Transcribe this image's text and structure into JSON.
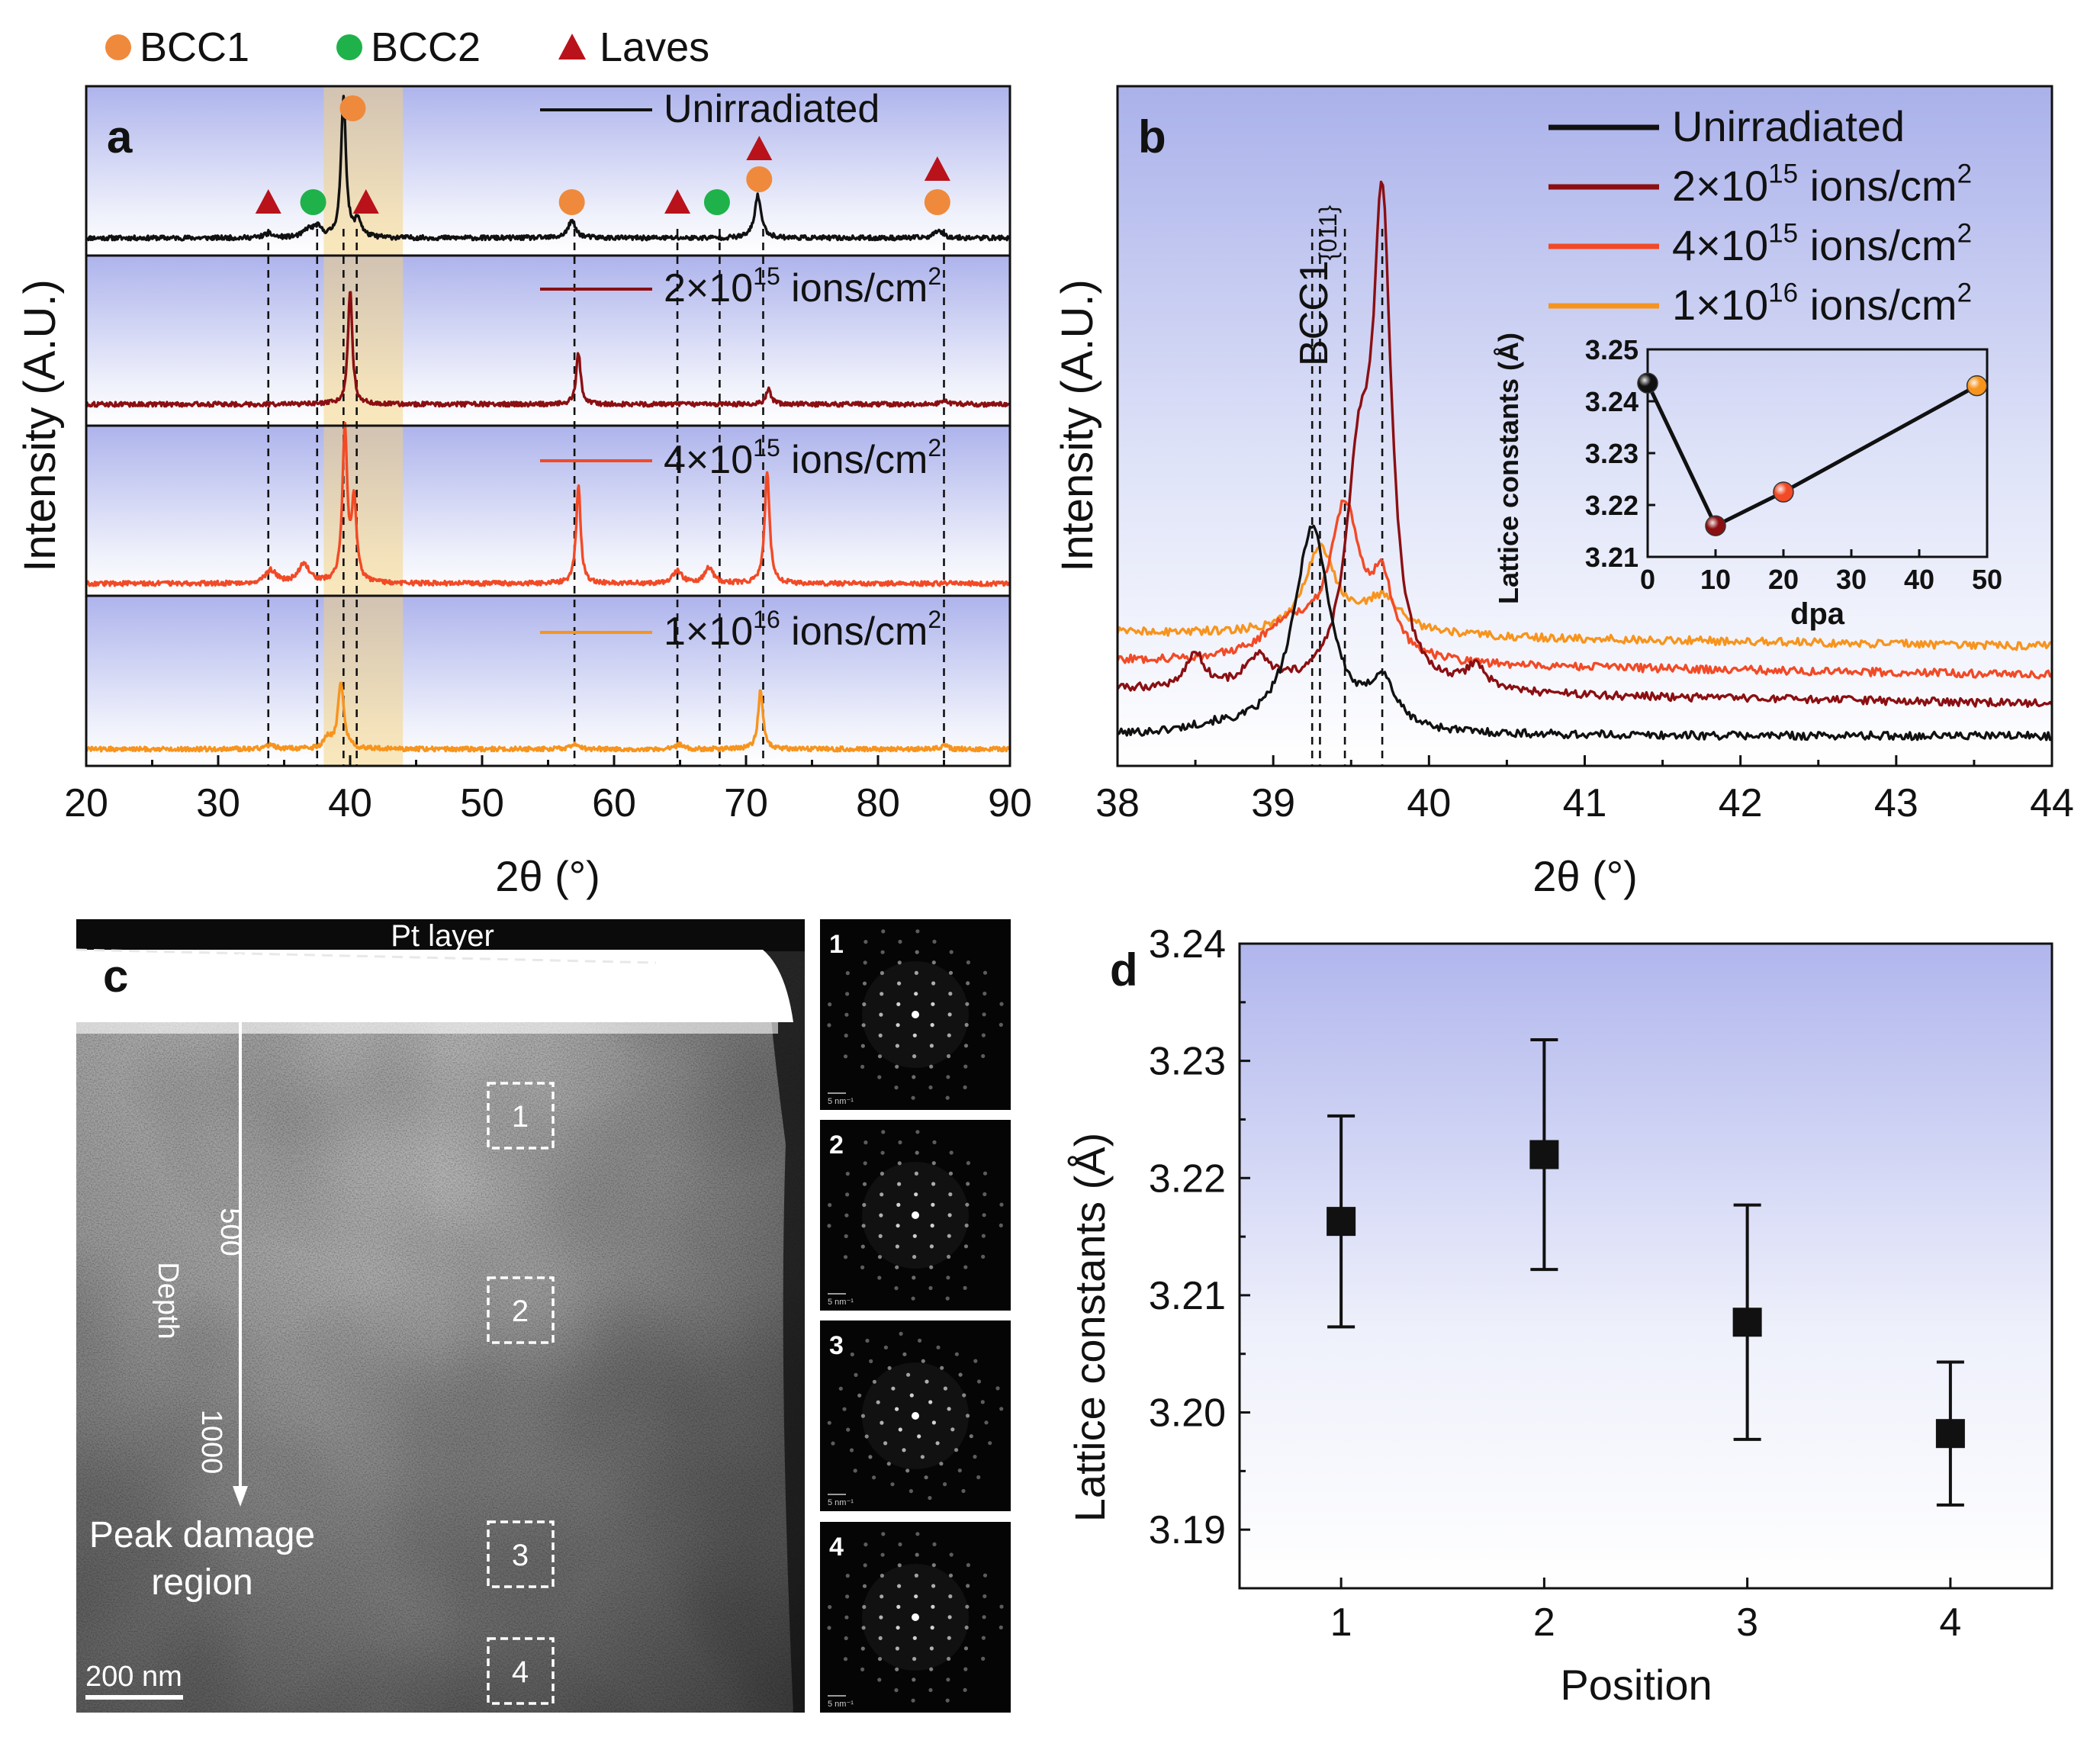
{
  "colors": {
    "unirr": "#111111",
    "f2e15": "#8b0f12",
    "f4e15": "#f24a26",
    "f1e16": "#f7941d",
    "bcc1": "#ef8a3c",
    "bcc2": "#1fb24a",
    "laves": "#b9121b"
  },
  "top_legend": [
    "BCC1",
    "BCC2",
    "Laves"
  ],
  "chart_data": [
    {
      "id": "a",
      "type": "line",
      "panel_label": "a",
      "xlabel": "2θ (°)",
      "ylabel": "Intensity (A.U.)",
      "xlim": [
        20,
        90
      ],
      "xticks": [
        "20",
        "30",
        "40",
        "50",
        "60",
        "70",
        "80",
        "90"
      ],
      "highlight_range": [
        38,
        44
      ],
      "dashed_lines_x": [
        33.8,
        37.5,
        39.5,
        40.5,
        57,
        64.8,
        68,
        71.3,
        85
      ],
      "series": [
        {
          "name": "Unirradiated",
          "label": "Unirradiated",
          "color_key": "unirr",
          "peaks": [
            [
              33.8,
              0.03,
              0.4
            ],
            [
              36.8,
              0.05,
              0.4
            ],
            [
              37.5,
              0.07,
              0.4
            ],
            [
              39.5,
              1.0,
              0.22
            ],
            [
              40.6,
              0.12,
              0.3
            ],
            [
              56.8,
              0.12,
              0.35
            ],
            [
              70.9,
              0.3,
              0.3
            ],
            [
              84.6,
              0.06,
              0.35
            ]
          ]
        },
        {
          "name": "2×10^15 ions/cm^2",
          "label": [
            "2×10",
            "15",
            " ions/cm",
            "2"
          ],
          "color_key": "f2e15",
          "peaks": [
            [
              40.0,
              1.0,
              0.2
            ],
            [
              57.3,
              0.45,
              0.2
            ],
            [
              71.7,
              0.14,
              0.22
            ],
            [
              85.0,
              0.04,
              0.3
            ]
          ]
        },
        {
          "name": "4×10^15 ions/cm^2",
          "label": [
            "4×10",
            "15",
            " ions/cm",
            "2"
          ],
          "color_key": "f4e15",
          "peaks": [
            [
              34.0,
              0.08,
              0.5
            ],
            [
              36.5,
              0.12,
              0.5
            ],
            [
              39.6,
              0.95,
              0.22
            ],
            [
              40.3,
              0.5,
              0.22
            ],
            [
              57.3,
              0.62,
              0.2
            ],
            [
              64.8,
              0.08,
              0.4
            ],
            [
              67.2,
              0.1,
              0.4
            ],
            [
              71.6,
              0.7,
              0.22
            ]
          ]
        },
        {
          "name": "1×10^16 ions/cm^2",
          "label": [
            "1×10",
            "16",
            " ions/cm",
            "2"
          ],
          "color_key": "f1e16",
          "peaks": [
            [
              34.0,
              0.05,
              0.4
            ],
            [
              38.3,
              0.12,
              0.3
            ],
            [
              39.3,
              0.7,
              0.28
            ],
            [
              57.0,
              0.06,
              0.35
            ],
            [
              65.0,
              0.05,
              0.35
            ],
            [
              71.1,
              0.65,
              0.22
            ],
            [
              85.0,
              0.04,
              0.3
            ]
          ]
        }
      ],
      "markers": [
        {
          "type": "laves",
          "x": 33.8
        },
        {
          "type": "bcc2",
          "x": 37.2
        },
        {
          "type": "bcc1",
          "x": 40.2
        },
        {
          "type": "laves",
          "x": 41.2
        },
        {
          "type": "bcc1",
          "x": 56.8
        },
        {
          "type": "laves",
          "x": 64.8
        },
        {
          "type": "bcc2",
          "x": 67.8
        },
        {
          "type": "bcc1",
          "x": 71.0
        },
        {
          "type": "laves",
          "x": 71.0
        },
        {
          "type": "bcc1",
          "x": 84.5
        },
        {
          "type": "laves",
          "x": 84.5
        }
      ]
    },
    {
      "id": "b",
      "type": "line",
      "panel_label": "b",
      "xlabel": "2θ (°)",
      "ylabel": "Intensity (A.U.)",
      "xlim": [
        38,
        44
      ],
      "xticks": [
        "38",
        "39",
        "40",
        "41",
        "42",
        "43",
        "44"
      ],
      "annotation": {
        "text": "BCC1",
        "sub": "{011}"
      },
      "dashed_lines_x": [
        39.25,
        39.3,
        39.46,
        39.7
      ],
      "legend": [
        {
          "label": [
            "Unirradiated"
          ],
          "color_key": "unirr"
        },
        {
          "label": [
            "2×10",
            "15",
            " ions/cm",
            "2"
          ],
          "color_key": "f2e15"
        },
        {
          "label": [
            "4×10",
            "15",
            " ions/cm",
            "2"
          ],
          "color_key": "f4e15"
        },
        {
          "label": [
            "1×10",
            "16",
            " ions/cm",
            "2"
          ],
          "color_key": "f1e16"
        }
      ],
      "series": [
        {
          "name": "Unirradiated",
          "color_key": "unirr",
          "baseline": 0.02,
          "peaks": [
            [
              39.25,
              0.36,
              0.14
            ],
            [
              39.7,
              0.08,
              0.1
            ],
            [
              38.6,
              0.01,
              0.2
            ]
          ]
        },
        {
          "name": "2×10^15 ions/cm^2",
          "color_key": "f2e15",
          "baseline": 0.1,
          "peaks": [
            [
              39.7,
              0.78,
              0.07
            ],
            [
              39.55,
              0.35,
              0.1
            ],
            [
              38.5,
              0.06,
              0.07
            ],
            [
              38.9,
              0.05,
              0.1
            ],
            [
              40.3,
              0.04,
              0.08
            ]
          ]
        },
        {
          "name": "4×10^15 ions/cm^2",
          "color_key": "f4e15",
          "baseline": 0.15,
          "peaks": [
            [
              39.46,
              0.26,
              0.12
            ],
            [
              39.7,
              0.12,
              0.08
            ],
            [
              39.1,
              0.06,
              0.2
            ]
          ]
        },
        {
          "name": "1×10^16 ions/cm^2",
          "color_key": "f1e16",
          "baseline": 0.2,
          "peaks": [
            [
              39.3,
              0.15,
              0.12
            ],
            [
              39.7,
              0.06,
              0.15
            ]
          ]
        }
      ],
      "inset": {
        "type": "line",
        "xlabel": "dpa",
        "ylabel": "Lattice constants (Å)",
        "xlim": [
          0,
          50
        ],
        "ylim": [
          3.21,
          3.25
        ],
        "xticks": [
          "0",
          "10",
          "20",
          "30",
          "40",
          "50"
        ],
        "yticks": [
          "3.21",
          "3.22",
          "3.23",
          "3.24",
          "3.25"
        ],
        "points": [
          {
            "x": 0,
            "y": 3.2435,
            "color_key": "unirr"
          },
          {
            "x": 10,
            "y": 3.216,
            "color_key": "f2e15"
          },
          {
            "x": 20,
            "y": 3.2225,
            "color_key": "f4e15"
          },
          {
            "x": 48.5,
            "y": 3.243,
            "color_key": "f1e16"
          }
        ]
      }
    },
    {
      "id": "d",
      "type": "scatter",
      "panel_label": "d",
      "xlabel": "Position",
      "ylabel": "Lattice constants (Å)",
      "xlim": [
        0.5,
        4.5
      ],
      "ylim": [
        3.185,
        3.24
      ],
      "xticks": [
        "1",
        "2",
        "3",
        "4"
      ],
      "yticks": [
        "3.19",
        "3.20",
        "3.21",
        "3.22",
        "3.23",
        "3.24"
      ],
      "points": [
        {
          "x": 1,
          "y": 3.2163,
          "err": 0.009
        },
        {
          "x": 2,
          "y": 3.222,
          "err": 0.0098
        },
        {
          "x": 3,
          "y": 3.2077,
          "err": 0.01
        },
        {
          "x": 4,
          "y": 3.1982,
          "err": 0.0061
        }
      ]
    }
  ],
  "panel_c": {
    "label": "c",
    "pt_layer": "Pt layer",
    "depth_label": "Depth",
    "depth_ticks": [
      "500",
      "1000"
    ],
    "peak_label_line1": "Peak damage",
    "peak_label_line2": "region",
    "scale_bar": "200 nm",
    "boxes": [
      "1",
      "2",
      "3",
      "4"
    ],
    "diffraction": [
      {
        "label": "1",
        "scale": "5 nm⁻¹"
      },
      {
        "label": "2",
        "scale": "5 nm⁻¹"
      },
      {
        "label": "3",
        "scale": "5 nm⁻¹"
      },
      {
        "label": "4",
        "scale": "5 nm⁻¹"
      }
    ]
  }
}
